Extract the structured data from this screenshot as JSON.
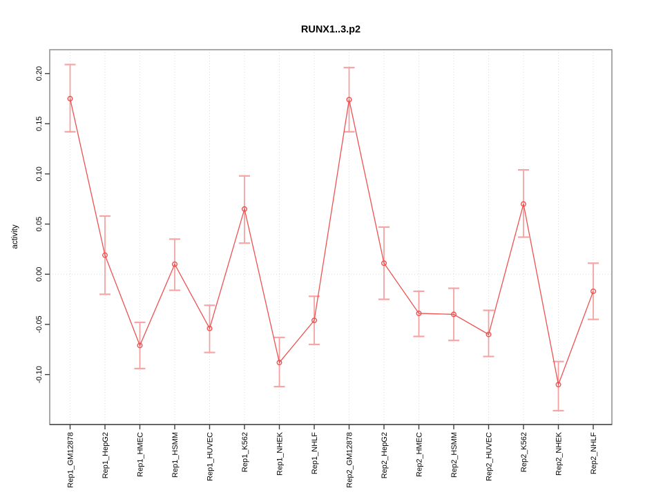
{
  "window": {
    "background": "#ffffff"
  },
  "chart_data": {
    "type": "line",
    "title": "RUNX1..3.p2",
    "xlabel": "",
    "ylabel": "activity",
    "categories": [
      "Rep1_GM12878",
      "Rep1_HepG2",
      "Rep1_HMEC",
      "Rep1_HSMM",
      "Rep1_HUVEC",
      "Rep1_K562",
      "Rep1_NHEK",
      "Rep1_NHLF",
      "Rep2_GM12878",
      "Rep2_HepG2",
      "Rep2_HMEC",
      "Rep2_HSMM",
      "Rep2_HUVEC",
      "Rep2_K562",
      "Rep2_NHEK",
      "Rep2_NHLF"
    ],
    "series": [
      {
        "name": "activity",
        "values": [
          0.175,
          0.019,
          -0.071,
          0.01,
          -0.054,
          0.065,
          -0.088,
          -0.046,
          0.174,
          0.011,
          -0.039,
          -0.04,
          -0.06,
          0.07,
          -0.11,
          -0.017
        ],
        "error_low": [
          0.142,
          -0.02,
          -0.094,
          -0.016,
          -0.078,
          0.031,
          -0.112,
          -0.07,
          0.142,
          -0.025,
          -0.062,
          -0.066,
          -0.082,
          0.037,
          -0.136,
          -0.045
        ],
        "error_high": [
          0.209,
          0.058,
          -0.048,
          0.035,
          -0.031,
          0.098,
          -0.063,
          -0.022,
          0.206,
          0.047,
          -0.017,
          -0.014,
          -0.036,
          0.104,
          -0.087,
          0.011
        ]
      }
    ],
    "yticks": [
      0.2,
      0.15,
      0.1,
      0.05,
      0.0,
      -0.05,
      -0.1
    ],
    "ylim": [
      -0.1498,
      0.2238
    ],
    "grid": {
      "vertical_category_lines": true,
      "zero_line": true,
      "style": "dotted"
    },
    "legend": "none",
    "marker": "open-circle",
    "colors": {
      "series": "#ee5151",
      "error_bars": "#f59c9c",
      "grid": "#d9d9d9",
      "box": "#8c8c8c",
      "ticks": "#3c3c3c",
      "text": "#000000",
      "background": "#ffffff"
    }
  }
}
